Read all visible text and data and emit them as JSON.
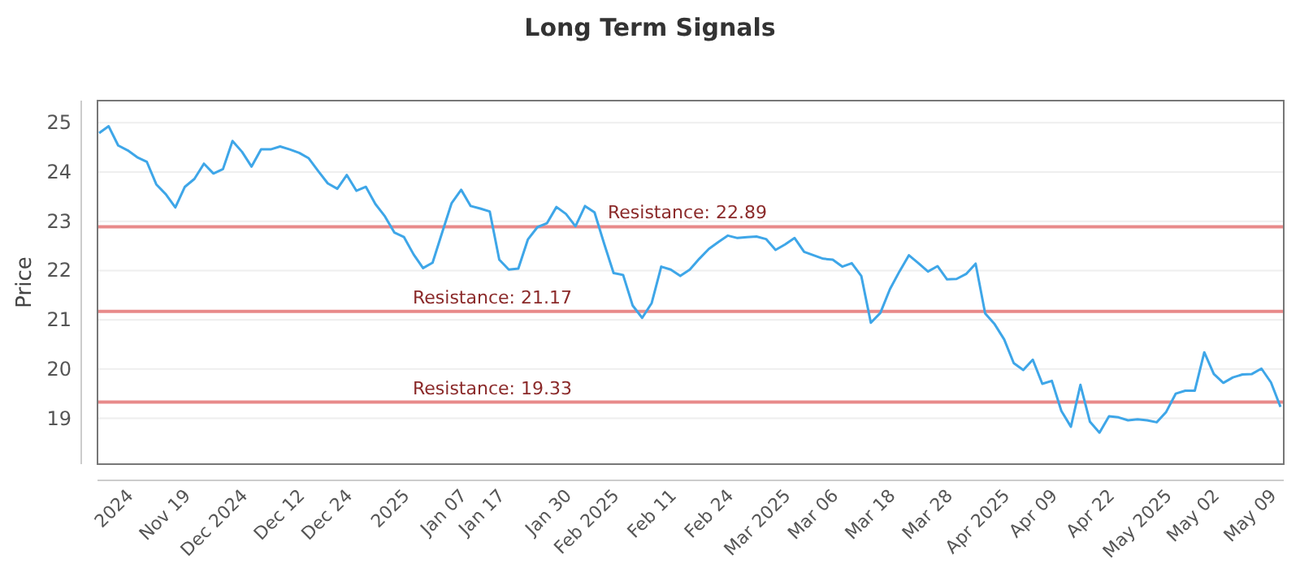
{
  "chart_data": {
    "type": "line",
    "title": "Long Term Signals",
    "ylabel": "Price",
    "categories": [
      null,
      null,
      null,
      "2024",
      null,
      null,
      null,
      null,
      null,
      "Nov 19",
      null,
      null,
      null,
      null,
      null,
      "Dec 2024",
      null,
      null,
      null,
      null,
      null,
      "Dec 12",
      null,
      null,
      null,
      null,
      "Dec 24",
      null,
      null,
      null,
      null,
      null,
      "2025",
      null,
      null,
      null,
      null,
      null,
      "Jan 07",
      null,
      null,
      null,
      "Jan 17",
      null,
      null,
      null,
      null,
      null,
      null,
      "Jan 30",
      null,
      null,
      null,
      null,
      "Feb 2025",
      null,
      null,
      null,
      null,
      null,
      "Feb 11",
      null,
      null,
      null,
      null,
      null,
      "Feb 24",
      null,
      null,
      null,
      null,
      null,
      "Mar 2025",
      null,
      null,
      null,
      null,
      "Mar 06",
      null,
      null,
      null,
      null,
      null,
      "Mar 18",
      null,
      null,
      null,
      null,
      null,
      "Mar 28",
      null,
      null,
      null,
      null,
      null,
      "Apr 2025",
      null,
      null,
      null,
      null,
      "Apr 09",
      null,
      null,
      null,
      null,
      null,
      "Apr 22",
      null,
      null,
      null,
      null,
      null,
      "May 2025",
      null,
      null,
      null,
      null,
      "May 02",
      null,
      null,
      null,
      null,
      null,
      "May 09",
      null
    ],
    "series": [
      {
        "color": "#3ea6e8",
        "values": [
          24.79,
          24.93,
          24.54,
          24.44,
          24.3,
          24.21,
          23.75,
          23.55,
          23.28,
          23.7,
          23.86,
          24.17,
          23.97,
          24.06,
          24.63,
          24.41,
          24.11,
          24.46,
          24.46,
          24.52,
          24.46,
          24.39,
          24.28,
          24.02,
          23.77,
          23.66,
          23.94,
          23.62,
          23.7,
          23.35,
          23.1,
          22.77,
          22.68,
          22.33,
          22.05,
          22.16,
          22.77,
          23.37,
          23.64,
          23.31,
          23.26,
          23.2,
          22.22,
          22.02,
          22.04,
          22.63,
          22.88,
          22.96,
          23.29,
          23.15,
          22.9,
          23.31,
          23.18,
          22.55,
          21.95,
          21.91,
          21.29,
          21.04,
          21.34,
          22.08,
          22.02,
          21.89,
          22.02,
          22.24,
          22.44,
          22.58,
          22.71,
          22.66,
          22.68,
          22.69,
          22.64,
          22.42,
          22.53,
          22.66,
          22.38,
          22.31,
          22.24,
          22.22,
          22.08,
          22.15,
          21.89,
          20.94,
          21.14,
          21.62,
          21.98,
          22.31,
          22.15,
          21.98,
          22.09,
          21.82,
          21.83,
          21.93,
          22.14,
          21.13,
          20.91,
          20.6,
          20.12,
          19.98,
          20.19,
          19.7,
          19.76,
          19.15,
          18.83,
          19.68,
          18.93,
          18.71,
          19.04,
          19.02,
          18.96,
          18.98,
          18.96,
          18.92,
          19.13,
          19.5,
          19.56,
          19.56,
          20.34,
          19.9,
          19.72,
          19.83,
          19.89,
          19.9,
          20.01,
          19.73,
          19.23
        ]
      }
    ],
    "ylim": [
      18.07,
      25.45
    ],
    "yticks": [
      19,
      20,
      21,
      22,
      23,
      24,
      25
    ],
    "grid": "y",
    "ref_lines": [
      {
        "axis": "y",
        "value": 22.89,
        "label": "Resistance: 22.89",
        "color": "#e88a8a"
      },
      {
        "axis": "y",
        "value": 21.17,
        "label": "Resistance: 21.17",
        "color": "#e88a8a"
      },
      {
        "axis": "y",
        "value": 19.33,
        "label": "Resistance: 19.33",
        "color": "#e88a8a"
      }
    ]
  }
}
